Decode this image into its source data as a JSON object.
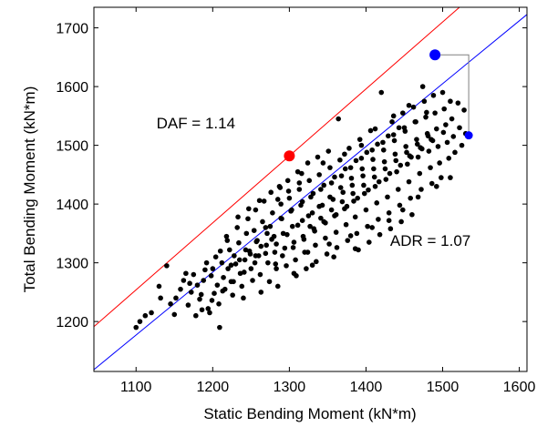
{
  "chart_data": {
    "type": "scatter",
    "xlabel": "Static Bending Moment (kN*m)",
    "ylabel": "Total Bending Moment (kN*m)",
    "xlim": [
      1045,
      1610
    ],
    "ylim": [
      1115,
      1735
    ],
    "xticks": [
      1100,
      1200,
      1300,
      1400,
      1500,
      1600
    ],
    "yticks": [
      1200,
      1300,
      1400,
      1500,
      1600,
      1700
    ],
    "grid": false,
    "annotations": [
      {
        "text": "DAF = 1.14",
        "x": 1178,
        "y": 1529
      },
      {
        "text": "ADR = 1.07",
        "x": 1484,
        "y": 1329
      }
    ],
    "lines": [
      {
        "color": "#ff0000",
        "slope": 1.14,
        "intercept": 0
      },
      {
        "color": "#0000ff",
        "slope": 1.07,
        "intercept": 0
      }
    ],
    "highlight_points": [
      {
        "x": 1300,
        "y": 1482,
        "color": "#ff0000",
        "size": "large"
      },
      {
        "x": 1490,
        "y": 1654,
        "color": "#0000ff",
        "size": "large"
      },
      {
        "x": 1534,
        "y": 1517,
        "color": "#0000ff",
        "size": "small"
      }
    ],
    "bracket": {
      "x_left": 1490,
      "x_right": 1534,
      "y_top": 1654,
      "y_bottom": 1517
    },
    "point_color": "#000000",
    "points": [
      [
        1100,
        1190
      ],
      [
        1105,
        1200
      ],
      [
        1112,
        1210
      ],
      [
        1120,
        1215
      ],
      [
        1130,
        1260
      ],
      [
        1132,
        1240
      ],
      [
        1140,
        1295
      ],
      [
        1145,
        1230
      ],
      [
        1152,
        1240
      ],
      [
        1158,
        1255
      ],
      [
        1162,
        1270
      ],
      [
        1165,
        1282
      ],
      [
        1170,
        1265
      ],
      [
        1172,
        1250
      ],
      [
        1175,
        1280
      ],
      [
        1178,
        1210
      ],
      [
        1180,
        1262
      ],
      [
        1183,
        1238
      ],
      [
        1186,
        1220
      ],
      [
        1188,
        1270
      ],
      [
        1190,
        1288
      ],
      [
        1192,
        1300
      ],
      [
        1194,
        1222
      ],
      [
        1196,
        1215
      ],
      [
        1198,
        1278
      ],
      [
        1200,
        1290
      ],
      [
        1202,
        1248
      ],
      [
        1204,
        1310
      ],
      [
        1206,
        1262
      ],
      [
        1208,
        1230
      ],
      [
        1209,
        1190
      ],
      [
        1210,
        1320
      ],
      [
        1212,
        1300
      ],
      [
        1214,
        1275
      ],
      [
        1216,
        1255
      ],
      [
        1218,
        1345
      ],
      [
        1220,
        1290
      ],
      [
        1222,
        1322
      ],
      [
        1224,
        1268
      ],
      [
        1226,
        1245
      ],
      [
        1228,
        1312
      ],
      [
        1230,
        1298
      ],
      [
        1232,
        1360
      ],
      [
        1234,
        1334
      ],
      [
        1236,
        1282
      ],
      [
        1238,
        1260
      ],
      [
        1240,
        1240
      ],
      [
        1242,
        1305
      ],
      [
        1244,
        1350
      ],
      [
        1246,
        1375
      ],
      [
        1248,
        1320
      ],
      [
        1250,
        1290
      ],
      [
        1252,
        1270
      ],
      [
        1254,
        1355
      ],
      [
        1256,
        1390
      ],
      [
        1258,
        1338
      ],
      [
        1260,
        1312
      ],
      [
        1262,
        1280
      ],
      [
        1263,
        1250
      ],
      [
        1265,
        1370
      ],
      [
        1267,
        1405
      ],
      [
        1269,
        1360
      ],
      [
        1270,
        1330
      ],
      [
        1272,
        1300
      ],
      [
        1274,
        1268
      ],
      [
        1276,
        1420
      ],
      [
        1278,
        1385
      ],
      [
        1280,
        1345
      ],
      [
        1281,
        1318
      ],
      [
        1283,
        1290
      ],
      [
        1285,
        1260
      ],
      [
        1287,
        1430
      ],
      [
        1289,
        1400
      ],
      [
        1290,
        1375
      ],
      [
        1292,
        1350
      ],
      [
        1294,
        1325
      ],
      [
        1296,
        1295
      ],
      [
        1298,
        1440
      ],
      [
        1300,
        1410
      ],
      [
        1302,
        1388
      ],
      [
        1304,
        1362
      ],
      [
        1306,
        1335
      ],
      [
        1308,
        1305
      ],
      [
        1309,
        1278
      ],
      [
        1311,
        1455
      ],
      [
        1313,
        1425
      ],
      [
        1315,
        1398
      ],
      [
        1317,
        1372
      ],
      [
        1318,
        1345
      ],
      [
        1320,
        1318
      ],
      [
        1322,
        1290
      ],
      [
        1324,
        1470
      ],
      [
        1326,
        1440
      ],
      [
        1328,
        1412
      ],
      [
        1330,
        1385
      ],
      [
        1332,
        1358
      ],
      [
        1334,
        1330
      ],
      [
        1335,
        1302
      ],
      [
        1337,
        1480
      ],
      [
        1339,
        1450
      ],
      [
        1341,
        1425
      ],
      [
        1343,
        1398
      ],
      [
        1345,
        1370
      ],
      [
        1347,
        1342
      ],
      [
        1349,
        1315
      ],
      [
        1351,
        1490
      ],
      [
        1353,
        1462
      ],
      [
        1355,
        1436
      ],
      [
        1357,
        1408
      ],
      [
        1359,
        1380
      ],
      [
        1361,
        1352
      ],
      [
        1362,
        1326
      ],
      [
        1364,
        1545
      ],
      [
        1366,
        1475
      ],
      [
        1368,
        1448
      ],
      [
        1370,
        1420
      ],
      [
        1372,
        1392
      ],
      [
        1374,
        1365
      ],
      [
        1376,
        1338
      ],
      [
        1378,
        1495
      ],
      [
        1380,
        1462
      ],
      [
        1382,
        1432
      ],
      [
        1384,
        1405
      ],
      [
        1386,
        1378
      ],
      [
        1388,
        1350
      ],
      [
        1390,
        1322
      ],
      [
        1392,
        1510
      ],
      [
        1394,
        1478
      ],
      [
        1396,
        1448
      ],
      [
        1398,
        1418
      ],
      [
        1400,
        1390
      ],
      [
        1402,
        1362
      ],
      [
        1404,
        1335
      ],
      [
        1406,
        1525
      ],
      [
        1408,
        1492
      ],
      [
        1410,
        1460
      ],
      [
        1412,
        1430
      ],
      [
        1414,
        1402
      ],
      [
        1416,
        1374
      ],
      [
        1418,
        1348
      ],
      [
        1420,
        1590
      ],
      [
        1422,
        1505
      ],
      [
        1424,
        1472
      ],
      [
        1426,
        1442
      ],
      [
        1428,
        1412
      ],
      [
        1430,
        1385
      ],
      [
        1432,
        1358
      ],
      [
        1434,
        1540
      ],
      [
        1436,
        1518
      ],
      [
        1438,
        1485
      ],
      [
        1440,
        1455
      ],
      [
        1442,
        1425
      ],
      [
        1444,
        1398
      ],
      [
        1446,
        1370
      ],
      [
        1448,
        1555
      ],
      [
        1450,
        1530
      ],
      [
        1452,
        1498
      ],
      [
        1454,
        1468
      ],
      [
        1456,
        1438
      ],
      [
        1458,
        1410
      ],
      [
        1460,
        1382
      ],
      [
        1462,
        1565
      ],
      [
        1464,
        1540
      ],
      [
        1466,
        1510
      ],
      [
        1468,
        1480
      ],
      [
        1470,
        1452
      ],
      [
        1472,
        1425
      ],
      [
        1474,
        1600
      ],
      [
        1476,
        1575
      ],
      [
        1478,
        1548
      ],
      [
        1480,
        1520
      ],
      [
        1482,
        1490
      ],
      [
        1484,
        1462
      ],
      [
        1486,
        1435
      ],
      [
        1488,
        1585
      ],
      [
        1490,
        1555
      ],
      [
        1492,
        1528
      ],
      [
        1494,
        1498
      ],
      [
        1496,
        1470
      ],
      [
        1498,
        1445
      ],
      [
        1500,
        1590
      ],
      [
        1502,
        1562
      ],
      [
        1504,
        1535
      ],
      [
        1506,
        1505
      ],
      [
        1508,
        1478
      ],
      [
        1510,
        1575
      ],
      [
        1512,
        1545
      ],
      [
        1514,
        1515
      ],
      [
        1516,
        1488
      ],
      [
        1520,
        1572
      ],
      [
        1522,
        1530
      ],
      [
        1525,
        1500
      ],
      [
        1528,
        1560
      ],
      [
        1530,
        1520
      ],
      [
        1150,
        1212
      ],
      [
        1168,
        1228
      ],
      [
        1185,
        1246
      ],
      [
        1199,
        1236
      ],
      [
        1213,
        1252
      ],
      [
        1227,
        1268
      ],
      [
        1241,
        1284
      ],
      [
        1255,
        1300
      ],
      [
        1269,
        1316
      ],
      [
        1283,
        1332
      ],
      [
        1297,
        1348
      ],
      [
        1311,
        1364
      ],
      [
        1325,
        1380
      ],
      [
        1339,
        1396
      ],
      [
        1353,
        1412
      ],
      [
        1367,
        1428
      ],
      [
        1381,
        1444
      ],
      [
        1395,
        1460
      ],
      [
        1409,
        1476
      ],
      [
        1423,
        1492
      ],
      [
        1437,
        1508
      ],
      [
        1451,
        1524
      ],
      [
        1465,
        1540
      ],
      [
        1479,
        1556
      ],
      [
        1233,
        1378
      ],
      [
        1247,
        1392
      ],
      [
        1261,
        1406
      ],
      [
        1275,
        1362
      ],
      [
        1289,
        1376
      ],
      [
        1303,
        1390
      ],
      [
        1317,
        1404
      ],
      [
        1331,
        1418
      ],
      [
        1345,
        1432
      ],
      [
        1359,
        1446
      ],
      [
        1373,
        1460
      ],
      [
        1387,
        1474
      ],
      [
        1401,
        1488
      ],
      [
        1415,
        1502
      ],
      [
        1429,
        1516
      ],
      [
        1443,
        1530
      ],
      [
        1457,
        1482
      ],
      [
        1471,
        1496
      ],
      [
        1485,
        1510
      ],
      [
        1219,
        1338
      ],
      [
        1243,
        1322
      ],
      [
        1257,
        1336
      ],
      [
        1271,
        1350
      ],
      [
        1285,
        1408
      ],
      [
        1299,
        1422
      ],
      [
        1313,
        1436
      ],
      [
        1327,
        1362
      ],
      [
        1341,
        1376
      ],
      [
        1355,
        1390
      ],
      [
        1369,
        1404
      ],
      [
        1383,
        1418
      ],
      [
        1397,
        1432
      ],
      [
        1411,
        1446
      ],
      [
        1425,
        1460
      ],
      [
        1439,
        1474
      ],
      [
        1453,
        1488
      ],
      [
        1467,
        1502
      ],
      [
        1481,
        1516
      ],
      [
        1235,
        1305
      ],
      [
        1249,
        1315
      ],
      [
        1263,
        1328
      ],
      [
        1277,
        1340
      ],
      [
        1291,
        1312
      ],
      [
        1305,
        1326
      ],
      [
        1319,
        1340
      ],
      [
        1333,
        1354
      ],
      [
        1347,
        1368
      ],
      [
        1361,
        1382
      ],
      [
        1375,
        1396
      ],
      [
        1389,
        1410
      ],
      [
        1403,
        1424
      ],
      [
        1417,
        1438
      ],
      [
        1431,
        1452
      ],
      [
        1445,
        1466
      ],
      [
        1459,
        1480
      ],
      [
        1473,
        1494
      ],
      [
        1487,
        1508
      ],
      [
        1501,
        1522
      ],
      [
        1288,
        1428
      ],
      [
        1316,
        1452
      ],
      [
        1344,
        1470
      ],
      [
        1372,
        1485
      ],
      [
        1394,
        1500
      ],
      [
        1412,
        1528
      ],
      [
        1436,
        1550
      ],
      [
        1456,
        1568
      ],
      [
        1324,
        1318
      ],
      [
        1352,
        1332
      ],
      [
        1380,
        1346
      ],
      [
        1408,
        1360
      ],
      [
        1430,
        1372
      ],
      [
        1448,
        1390
      ],
      [
        1468,
        1412
      ],
      [
        1492,
        1430
      ],
      [
        1510,
        1445
      ],
      [
        1224,
        1296
      ],
      [
        1256,
        1312
      ],
      [
        1282,
        1298
      ],
      [
        1306,
        1282
      ],
      [
        1330,
        1296
      ],
      [
        1358,
        1310
      ],
      [
        1386,
        1324
      ]
    ]
  }
}
